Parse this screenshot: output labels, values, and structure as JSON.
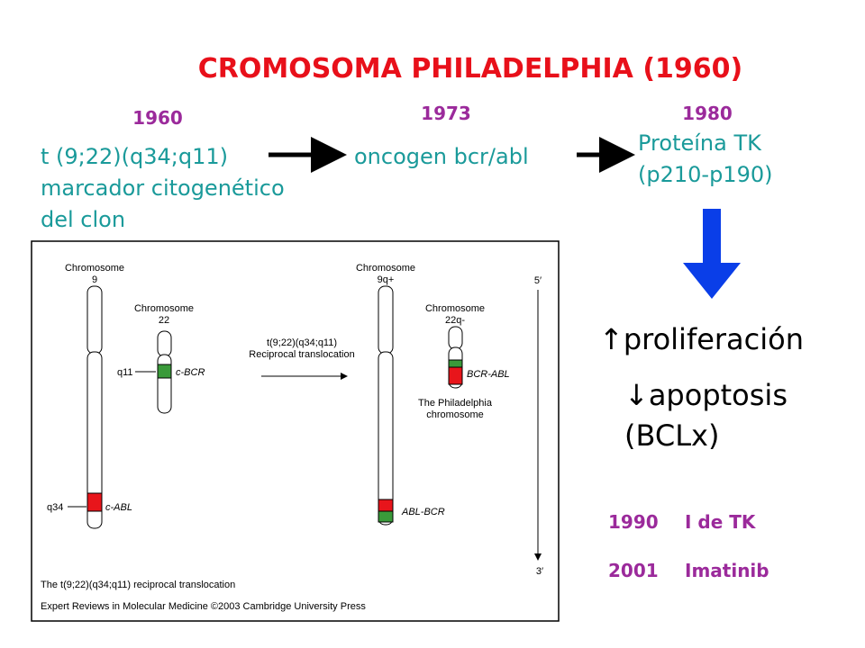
{
  "title": "CROMOSOMA PHILADELPHIA (1960)",
  "timeline": [
    {
      "year": "1960",
      "lines": [
        "t (9;22)(q34;q11)",
        "marcador citogenético",
        "del clon"
      ]
    },
    {
      "year": "1973",
      "lines": [
        "oncogen bcr/abl"
      ]
    },
    {
      "year": "1980",
      "lines": [
        "Proteína TK",
        "(p210-p190)"
      ]
    }
  ],
  "effects": [
    "↑proliferación",
    "↓apoptosis",
    "(BCLx)"
  ],
  "milestones": [
    {
      "year": "1990",
      "label": "I de TK"
    },
    {
      "year": "2001",
      "label": "Imatinib"
    }
  ],
  "figure": {
    "chr9": {
      "title": "Chromosome",
      "name": "9",
      "q34": "q34",
      "gene": "c-ABL"
    },
    "chr22": {
      "title": "Chromosome",
      "name": "22",
      "q11": "q11",
      "gene": "c-BCR"
    },
    "translocation": [
      "t(9;22)(q34;q11)",
      "Reciprocal translocation"
    ],
    "chr9q": {
      "title": "Chromosome",
      "name": "9q+",
      "gene": "ABL-BCR"
    },
    "chr22q": {
      "title": "Chromosome",
      "name": "22q-",
      "gene": "BCR-ABL",
      "note": [
        "The Philadelphia",
        "chromosome"
      ]
    },
    "ends": [
      "5′",
      "3′"
    ],
    "caption": "The t(9;22)(q34;q11) reciprocal translocation",
    "credit": "Expert Reviews in Molecular Medicine ©2003 Cambridge University Press"
  }
}
